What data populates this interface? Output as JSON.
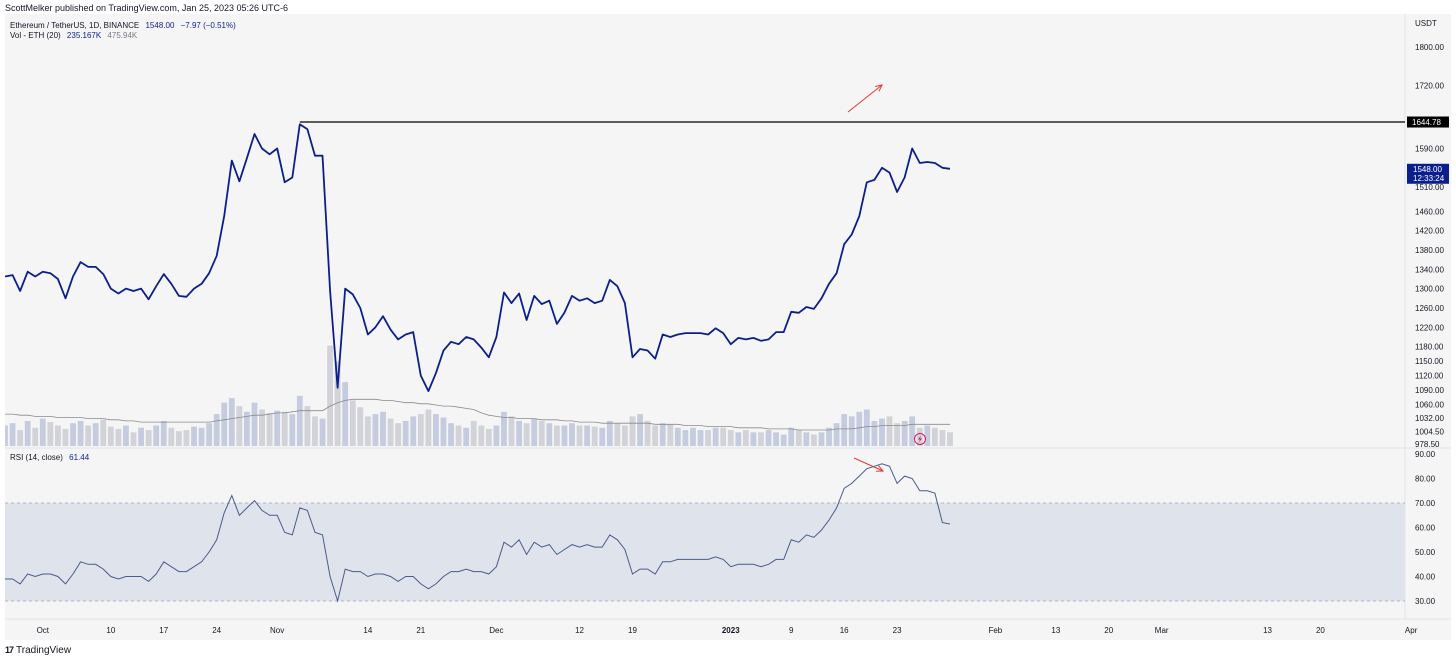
{
  "header": {
    "published": "ScottMelker published on TradingView.com, Jan 25, 2023 05:26 UTC-6"
  },
  "legend": {
    "symbol": "Ethereum / TetherUS, 1D, BINANCE",
    "last": "1548.00",
    "change": "−7.97 (−0.51%)",
    "volume_label": "Vol - ETH (20)",
    "volume_value": "235.167K",
    "volume_ma": "475.94K",
    "rsi_label": "RSI (14, close)",
    "rsi_value": "61.44"
  },
  "footer": {
    "logo": "17",
    "brand": "TradingView"
  },
  "colors": {
    "price_line": "#0b1f8c",
    "resistance_line": "#000000",
    "arrows": "#e53935",
    "volume_up": "#c5cce0",
    "volume_down": "#d2d3d8",
    "volume_ma": "#8a8a8a",
    "rsi_line": "#4a5b8c",
    "rsi_band": "#dfe4ec",
    "pane_bg": "#f5f5f5"
  },
  "chart_data": {
    "type": "line",
    "price_axis_unit": "USDT",
    "price_ticks": [
      "1800.00",
      "1720.00",
      "1644.78",
      "1590.00",
      "1548.00",
      "1510.00",
      "1460.00",
      "1420.00",
      "1380.00",
      "1340.00",
      "1300.00",
      "1260.00",
      "1220.00",
      "1180.00",
      "1150.00",
      "1120.00",
      "1090.00",
      "1060.00",
      "1032.00",
      "1004.50",
      "978.50"
    ],
    "price_tick_values": [
      1800,
      1720,
      1644.78,
      1590,
      1548,
      1510,
      1460,
      1420,
      1380,
      1340,
      1300,
      1260,
      1220,
      1180,
      1150,
      1120,
      1090,
      1060,
      1032,
      1004.5,
      978.5
    ],
    "current_price_label": "1548.00",
    "countdown_label": "12:33:24",
    "resistance_label": "1644.78",
    "resistance_value": 1644.78,
    "x_ticks": [
      "Oct",
      "10",
      "17",
      "24",
      "Nov",
      "14",
      "21",
      "Dec",
      "12",
      "19",
      "2023",
      "9",
      "16",
      "23",
      "Feb",
      "13",
      "20",
      "Mar",
      "13",
      "20",
      "Apr"
    ],
    "x_tick_days": [
      5,
      14,
      21,
      28,
      36,
      48,
      55,
      65,
      76,
      83,
      96,
      104,
      111,
      118,
      131,
      139,
      146,
      153,
      167,
      174,
      186
    ],
    "day0": "Sep 26, 2022",
    "price_close": [
      1325,
      1328,
      1295,
      1335,
      1325,
      1335,
      1332,
      1320,
      1280,
      1325,
      1355,
      1345,
      1345,
      1330,
      1300,
      1290,
      1300,
      1295,
      1300,
      1278,
      1305,
      1330,
      1310,
      1285,
      1283,
      1300,
      1310,
      1332,
      1368,
      1450,
      1565,
      1522,
      1570,
      1620,
      1590,
      1578,
      1590,
      1520,
      1530,
      1640,
      1630,
      1575,
      1575,
      1295,
      1095,
      1300,
      1288,
      1260,
      1205,
      1220,
      1243,
      1215,
      1195,
      1205,
      1210,
      1120,
      1088,
      1125,
      1172,
      1190,
      1185,
      1200,
      1195,
      1178,
      1158,
      1200,
      1292,
      1270,
      1290,
      1235,
      1285,
      1268,
      1275,
      1227,
      1250,
      1285,
      1275,
      1280,
      1270,
      1275,
      1318,
      1305,
      1270,
      1158,
      1175,
      1172,
      1155,
      1205,
      1200,
      1205,
      1208,
      1208,
      1208,
      1205,
      1218,
      1208,
      1185,
      1198,
      1195,
      1198,
      1192,
      1195,
      1210,
      1210,
      1252,
      1250,
      1262,
      1258,
      1280,
      1310,
      1332,
      1392,
      1412,
      1450,
      1520,
      1525,
      1550,
      1540,
      1500,
      1530,
      1590,
      1560,
      1562,
      1560,
      1550,
      1548
    ],
    "rsi_axis_ticks": [
      "90.00",
      "80.00",
      "70.00",
      "60.00",
      "50.00",
      "40.00",
      "30.00"
    ],
    "rsi_axis_values": [
      90,
      80,
      70,
      60,
      50,
      40,
      30
    ],
    "rsi_band": [
      30,
      70
    ],
    "rsi": [
      39,
      39,
      37,
      41,
      40,
      41,
      41,
      40,
      37,
      41,
      46,
      45,
      45,
      43,
      40,
      39,
      40,
      40,
      40,
      38,
      41,
      46,
      44,
      42,
      42,
      44,
      46,
      50,
      55,
      66,
      73,
      65,
      68,
      71,
      67,
      65,
      65,
      58,
      57,
      68,
      67,
      58,
      57,
      40,
      30,
      43,
      42,
      42,
      40,
      41,
      41,
      40,
      38,
      40,
      40,
      37,
      35,
      37,
      40,
      42,
      42,
      43,
      42,
      42,
      41,
      44,
      54,
      52,
      55,
      49,
      54,
      52,
      53,
      49,
      51,
      53,
      52,
      53,
      52,
      52,
      57,
      55,
      51,
      41,
      43,
      43,
      41,
      46,
      46,
      47,
      47,
      47,
      47,
      47,
      48,
      47,
      44,
      45,
      45,
      45,
      44,
      45,
      47,
      47,
      55,
      54,
      57,
      56,
      59,
      63,
      68,
      76,
      78,
      81,
      84,
      85,
      86,
      85,
      78,
      81,
      80,
      75,
      75,
      74,
      62,
      61.44
    ],
    "volume": [
      18,
      20,
      14,
      22,
      16,
      24,
      21,
      18,
      15,
      20,
      22,
      18,
      20,
      23,
      17,
      15,
      18,
      12,
      16,
      14,
      18,
      22,
      16,
      13,
      14,
      17,
      16,
      20,
      28,
      38,
      42,
      35,
      30,
      38,
      32,
      29,
      31,
      30,
      28,
      44,
      35,
      26,
      24,
      88,
      74,
      56,
      40,
      34,
      26,
      28,
      30,
      24,
      20,
      22,
      26,
      28,
      32,
      28,
      25,
      20,
      18,
      16,
      22,
      18,
      15,
      18,
      30,
      26,
      22,
      20,
      24,
      22,
      20,
      18,
      18,
      20,
      18,
      18,
      17,
      16,
      22,
      20,
      18,
      26,
      28,
      22,
      18,
      20,
      19,
      16,
      14,
      16,
      14,
      14,
      16,
      16,
      14,
      12,
      14,
      12,
      12,
      14,
      12,
      10,
      16,
      14,
      12,
      10,
      12,
      16,
      20,
      28,
      26,
      30,
      32,
      22,
      24,
      26,
      20,
      22,
      26,
      16,
      18,
      16,
      14,
      12
    ],
    "volume_ma20": [
      28,
      28,
      27,
      27,
      26,
      26,
      26,
      25,
      25,
      25,
      25,
      24,
      24,
      24,
      23,
      23,
      22,
      22,
      21,
      21,
      21,
      21,
      21,
      21,
      21,
      21,
      21,
      21,
      22,
      23,
      24,
      25,
      26,
      27,
      27,
      28,
      29,
      29,
      30,
      31,
      31,
      31,
      31,
      35,
      38,
      40,
      41,
      41,
      41,
      41,
      40,
      40,
      39,
      38,
      38,
      37,
      37,
      36,
      35,
      35,
      34,
      33,
      32,
      29,
      27,
      26,
      25,
      25,
      24,
      24,
      24,
      23,
      23,
      23,
      22,
      22,
      21,
      21,
      21,
      20,
      20,
      20,
      20,
      20,
      20,
      20,
      19,
      19,
      19,
      19,
      18,
      18,
      18,
      17,
      17,
      17,
      17,
      16,
      16,
      16,
      16,
      15,
      15,
      15,
      15,
      14,
      14,
      14,
      14,
      14,
      15,
      15,
      15,
      16,
      17,
      17,
      18,
      18,
      18,
      18,
      19,
      19,
      19,
      19,
      19,
      19
    ]
  }
}
